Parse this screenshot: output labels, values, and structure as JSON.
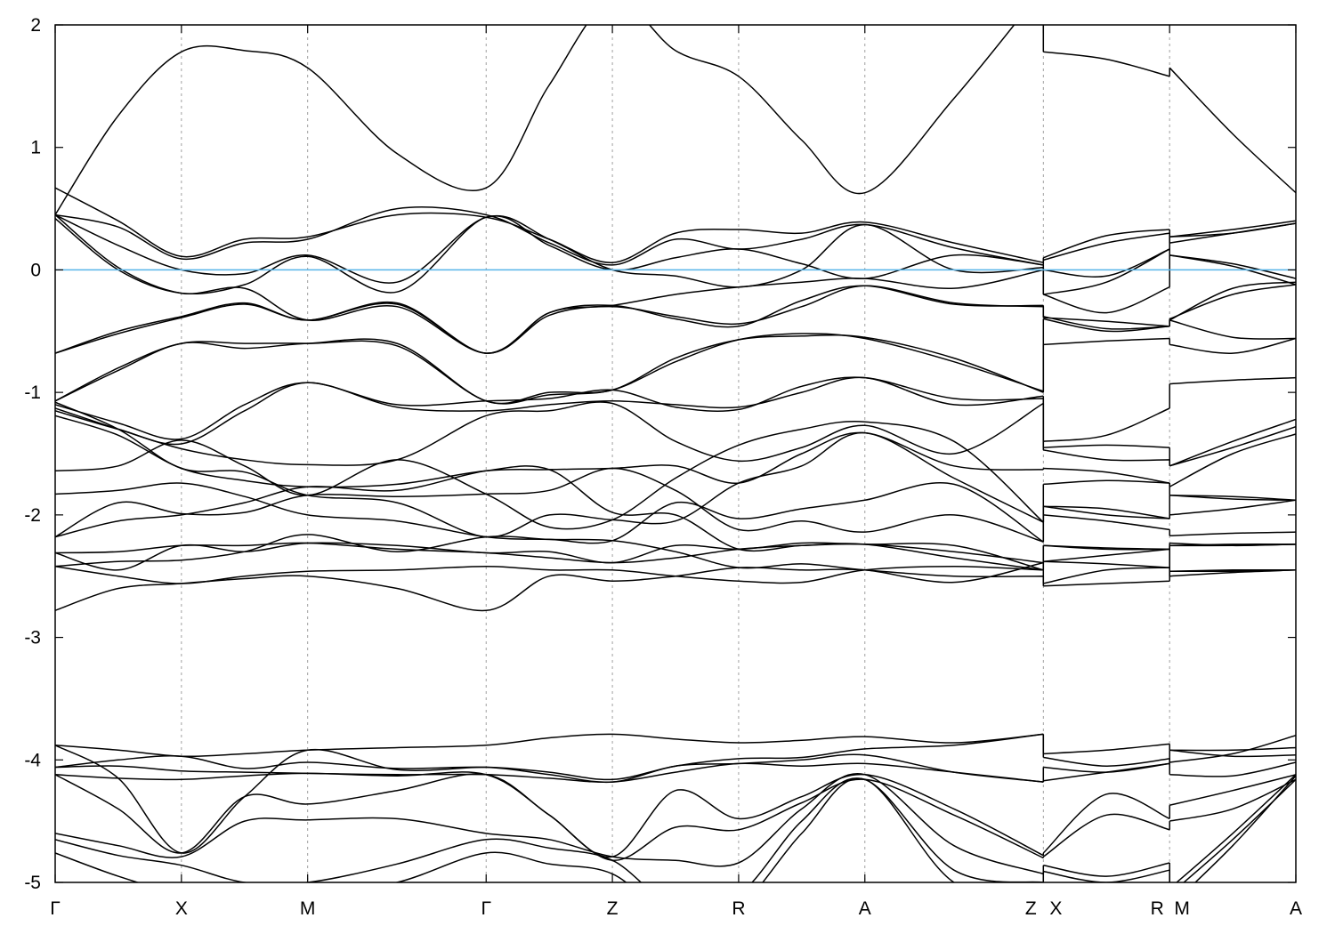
{
  "chart_data": {
    "type": "line",
    "title": "",
    "xlabel": "",
    "ylabel": "",
    "ylim": [
      -5,
      2
    ],
    "yticks": [
      2,
      1,
      0,
      -1,
      -2,
      -3,
      -4,
      -5
    ],
    "xlim": [
      0,
      4.914
    ],
    "xticks": [
      {
        "k": 0,
        "label": "Γ"
      },
      {
        "k": 0.5,
        "label": "X"
      },
      {
        "k": 1.0,
        "label": "M"
      },
      {
        "k": 1.707,
        "label": "Γ"
      },
      {
        "k": 2.207,
        "label": "Z"
      },
      {
        "k": 2.707,
        "label": "R"
      },
      {
        "k": 3.207,
        "label": "A"
      },
      {
        "k": 3.914,
        "label": "Z"
      },
      {
        "k": 3.914,
        "label": "X"
      },
      {
        "k": 4.414,
        "label": "R"
      },
      {
        "k": 4.414,
        "label": "M"
      },
      {
        "k": 4.914,
        "label": "A"
      }
    ],
    "grid": "vertical dashed at high-symmetry points",
    "fermi_level": 0,
    "colors": {
      "bands": "#000000",
      "fermi_line": "#56b4e9",
      "grid": "#a0a0a0"
    },
    "k": [
      0,
      0.25,
      0.5,
      0.75,
      1.0,
      1.354,
      1.707,
      1.957,
      2.207,
      2.457,
      2.707,
      2.957,
      3.207,
      3.56,
      3.914,
      3.914,
      4.164,
      4.414,
      4.414,
      4.664,
      4.914
    ],
    "bands": [
      [
        0.45,
        1.26,
        1.78,
        1.79,
        1.65,
        0.95,
        0.67,
        1.51,
        2.2,
        1.79,
        1.58,
        1.06,
        0.63,
        1.4,
        2.3,
        1.78,
        1.72,
        1.58,
        1.65,
        1.11,
        0.63
      ],
      [
        0.67,
        0.4,
        0.11,
        0.25,
        0.27,
        0.45,
        0.43,
        0.25,
        0.06,
        0.3,
        0.33,
        0.3,
        0.39,
        0.22,
        0.06,
        0.1,
        0.28,
        0.33,
        0.27,
        0.33,
        0.4
      ],
      [
        0.45,
        0.35,
        0.09,
        0.22,
        0.25,
        0.5,
        0.45,
        0.22,
        0.04,
        0.25,
        0.17,
        0.25,
        0.37,
        0.18,
        0.04,
        0.08,
        0.22,
        0.3,
        0.22,
        0.3,
        0.38
      ],
      [
        0.45,
        0.2,
        0.0,
        -0.03,
        0.12,
        -0.1,
        0.43,
        0.25,
        0.0,
        -0.05,
        -0.14,
        0.0,
        0.37,
        0.0,
        0.02,
        0.0,
        -0.05,
        0.17,
        0.12,
        0.05,
        -0.07
      ],
      [
        0.42,
        0.0,
        -0.19,
        -0.12,
        0.11,
        -0.18,
        0.43,
        0.2,
        0.0,
        0.1,
        0.17,
        0.05,
        -0.07,
        0.12,
        0.04,
        -0.2,
        -0.35,
        -0.14,
        0.12,
        0.03,
        -0.12
      ],
      [
        0.45,
        0.02,
        -0.19,
        -0.15,
        -0.41,
        -0.3,
        -0.68,
        -0.35,
        -0.29,
        -0.4,
        -0.46,
        -0.25,
        -0.13,
        -0.28,
        -0.29,
        -0.38,
        -0.48,
        -0.46,
        -0.41,
        -0.15,
        -0.1
      ],
      [
        -0.68,
        -0.5,
        -0.38,
        -0.27,
        -0.41,
        -0.27,
        -0.68,
        -0.35,
        -0.29,
        -0.2,
        -0.14,
        -0.1,
        -0.07,
        -0.15,
        0.0,
        -0.2,
        -0.1,
        0.17,
        0.27,
        0.3,
        0.38
      ],
      [
        -0.68,
        -0.52,
        -0.39,
        -0.28,
        -0.41,
        -0.28,
        -0.68,
        -0.37,
        -0.3,
        -0.38,
        -0.44,
        -0.3,
        -0.13,
        -0.27,
        -0.3,
        -0.39,
        -0.42,
        -0.46,
        -0.4,
        -0.2,
        -0.12
      ],
      [
        -1.07,
        -0.8,
        -0.6,
        -0.6,
        -0.6,
        -0.62,
        -1.07,
        -1.02,
        -0.98,
        -0.75,
        -0.57,
        -0.52,
        -0.56,
        -0.75,
        -0.99,
        -0.61,
        -0.58,
        -0.56,
        -0.61,
        -0.68,
        -0.56
      ],
      [
        -1.07,
        -0.82,
        -0.6,
        -0.64,
        -0.6,
        -0.6,
        -1.07,
        -1.0,
        -0.98,
        -0.72,
        -0.57,
        -0.54,
        -0.55,
        -0.72,
        -1.0,
        -0.4,
        -0.5,
        -0.46,
        -0.41,
        -0.55,
        -0.56
      ],
      [
        -1.15,
        -1.3,
        -1.42,
        -1.15,
        -0.92,
        -1.12,
        -1.15,
        -1.1,
        -1.07,
        -1.1,
        -1.12,
        -1.0,
        -0.88,
        -1.1,
        -1.03,
        -1.4,
        -1.35,
        -1.13,
        -0.93,
        -0.9,
        -0.88
      ],
      [
        -1.1,
        -1.25,
        -1.38,
        -1.1,
        -0.92,
        -1.1,
        -1.07,
        -1.05,
        -0.98,
        -1.12,
        -1.14,
        -0.95,
        -0.88,
        -1.05,
        -1.05,
        -1.45,
        -1.43,
        -1.45,
        -1.6,
        -1.4,
        -1.22
      ],
      [
        -1.13,
        -1.3,
        -1.46,
        -1.55,
        -1.59,
        -1.55,
        -1.19,
        -1.15,
        -1.09,
        -1.4,
        -1.56,
        -1.45,
        -1.27,
        -1.5,
        -1.09,
        -1.47,
        -1.55,
        -1.55,
        -1.6,
        -1.45,
        -1.28
      ],
      [
        -1.19,
        -1.35,
        -1.62,
        -1.72,
        -1.77,
        -1.75,
        -1.64,
        -1.63,
        -1.62,
        -1.6,
        -1.74,
        -1.5,
        -1.33,
        -1.6,
        -1.63,
        -1.62,
        -1.65,
        -1.74,
        -1.77,
        -1.5,
        -1.34
      ],
      [
        -1.64,
        -1.6,
        -1.39,
        -1.6,
        -1.84,
        -1.55,
        -1.83,
        -2.1,
        -2.04,
        -1.7,
        -1.43,
        -1.3,
        -1.24,
        -1.4,
        -2.06,
        -1.75,
        -1.72,
        -1.74,
        -1.84,
        -1.85,
        -1.88
      ],
      [
        -1.83,
        -1.8,
        -1.74,
        -1.85,
        -2.0,
        -2.05,
        -2.18,
        -2.2,
        -2.21,
        -1.9,
        -2.03,
        -1.95,
        -1.88,
        -1.75,
        -2.22,
        -1.93,
        -1.95,
        -2.03,
        -2.0,
        -1.95,
        -1.88
      ],
      [
        -2.18,
        -1.9,
        -1.99,
        -1.98,
        -1.84,
        -1.85,
        -1.83,
        -1.8,
        -1.62,
        -1.8,
        -2.12,
        -2.05,
        -2.14,
        -2.0,
        -2.22,
        -2.0,
        -2.05,
        -2.12,
        -2.17,
        -2.15,
        -2.14
      ],
      [
        -2.18,
        -2.05,
        -2.0,
        -1.9,
        -1.77,
        -1.8,
        -1.64,
        -1.63,
        -1.98,
        -2.0,
        -2.28,
        -2.25,
        -2.24,
        -2.3,
        -2.39,
        -2.25,
        -2.27,
        -2.28,
        -2.25,
        -2.25,
        -2.24
      ],
      [
        -2.31,
        -2.3,
        -2.25,
        -2.25,
        -2.23,
        -2.28,
        -2.31,
        -2.35,
        -2.39,
        -2.35,
        -2.28,
        -2.25,
        -2.24,
        -2.35,
        -2.45,
        -2.38,
        -2.33,
        -2.28,
        -2.46,
        -2.45,
        -2.45
      ],
      [
        -2.42,
        -2.38,
        -2.37,
        -2.3,
        -2.16,
        -2.3,
        -2.18,
        -2.2,
        -2.21,
        -2.3,
        -2.43,
        -2.4,
        -2.45,
        -2.5,
        -2.5,
        -2.56,
        -2.45,
        -2.43,
        -2.5,
        -2.47,
        -2.45
      ],
      [
        -2.42,
        -2.5,
        -2.56,
        -2.5,
        -2.46,
        -2.45,
        -2.42,
        -2.45,
        -2.45,
        -2.5,
        -2.54,
        -2.55,
        -2.45,
        -2.42,
        -2.45,
        -2.58,
        -2.56,
        -2.54,
        -2.46,
        -2.46,
        -2.45
      ],
      [
        -2.78,
        -2.6,
        -2.56,
        -2.52,
        -2.5,
        -2.6,
        -2.78,
        -2.5,
        -2.54,
        -2.5,
        -2.43,
        -2.45,
        -2.45,
        -2.55,
        -2.39,
        -2.38,
        -2.4,
        -2.43,
        -2.25,
        -2.24,
        -2.24
      ],
      [
        -2.31,
        -2.45,
        -2.25,
        -2.3,
        -2.23,
        -2.25,
        -2.31,
        -2.3,
        -2.39,
        -2.25,
        -2.28,
        -2.23,
        -2.24,
        -2.25,
        -2.45,
        -2.25,
        -2.28,
        -2.28,
        -2.23,
        -2.25,
        -2.24
      ],
      [
        -1.08,
        -1.3,
        -1.62,
        -1.65,
        -1.84,
        -1.9,
        -2.18,
        -2.0,
        -2.04,
        -2.05,
        -1.74,
        -1.6,
        -1.33,
        -1.7,
        -2.06,
        -1.93,
        -2.0,
        -2.03,
        -1.84,
        -1.87,
        -1.88
      ],
      [
        -3.88,
        -3.92,
        -3.97,
        -3.95,
        -3.92,
        -3.9,
        -3.88,
        -3.82,
        -3.79,
        -3.83,
        -3.86,
        -3.84,
        -3.81,
        -3.86,
        -3.79,
        -3.95,
        -3.92,
        -3.87,
        -3.92,
        -3.92,
        -3.9
      ],
      [
        -3.88,
        -4.15,
        -4.76,
        -4.3,
        -3.92,
        -4.08,
        -4.06,
        -4.1,
        -4.16,
        -4.05,
        -3.99,
        -3.98,
        -3.91,
        -3.88,
        -3.79,
        -3.98,
        -4.05,
        -3.99,
        -4.02,
        -3.95,
        -3.8
      ],
      [
        -4.06,
        -4.0,
        -3.97,
        -4.07,
        -4.02,
        -4.07,
        -4.06,
        -4.12,
        -4.18,
        -4.05,
        -4.03,
        -4.0,
        -3.96,
        -4.1,
        -4.18,
        -4.06,
        -4.1,
        -4.03,
        -3.92,
        -3.97,
        -3.96
      ],
      [
        -4.06,
        -4.05,
        -4.09,
        -4.1,
        -4.11,
        -4.12,
        -4.12,
        -4.15,
        -4.18,
        -4.1,
        -4.03,
        -4.05,
        -4.03,
        -4.1,
        -4.18,
        -4.17,
        -4.1,
        -4.03,
        -4.12,
        -4.13,
        -4.02
      ],
      [
        -4.12,
        -4.4,
        -4.76,
        -4.3,
        -4.36,
        -4.25,
        -4.12,
        -4.45,
        -4.79,
        -4.25,
        -4.48,
        -4.3,
        -4.12,
        -4.4,
        -4.78,
        -4.76,
        -4.28,
        -4.48,
        -4.37,
        -4.25,
        -4.12
      ],
      [
        -4.12,
        -4.15,
        -4.16,
        -4.13,
        -4.11,
        -4.13,
        -4.12,
        -4.45,
        -4.82,
        -4.55,
        -4.57,
        -4.35,
        -4.16,
        -4.45,
        -4.8,
        -4.79,
        -4.45,
        -4.57,
        -4.5,
        -4.4,
        -4.16
      ],
      [
        -4.6,
        -4.7,
        -4.79,
        -4.5,
        -4.49,
        -4.48,
        -4.6,
        -4.65,
        -4.79,
        -4.82,
        -4.84,
        -4.4,
        -4.12,
        -4.7,
        -4.93,
        -4.86,
        -4.95,
        -4.84,
        -5.05,
        -4.6,
        -4.12
      ],
      [
        -4.65,
        -4.78,
        -4.86,
        -5.0,
        -5.0,
        -4.85,
        -4.65,
        -4.72,
        -4.82,
        -5.2,
        -5.1,
        -4.5,
        -4.16,
        -4.9,
        -5.0,
        -4.91,
        -5.0,
        -4.9,
        -5.1,
        -4.65,
        -4.16
      ],
      [
        -4.76,
        -4.95,
        -5.1,
        -5.2,
        -5.1,
        -5.0,
        -4.76,
        -4.85,
        -4.93,
        -5.3,
        -5.2,
        -4.6,
        -4.16,
        -5.0,
        -5.1,
        -5.05,
        -5.1,
        -5.0,
        -5.2,
        -4.7,
        -4.13
      ]
    ]
  }
}
